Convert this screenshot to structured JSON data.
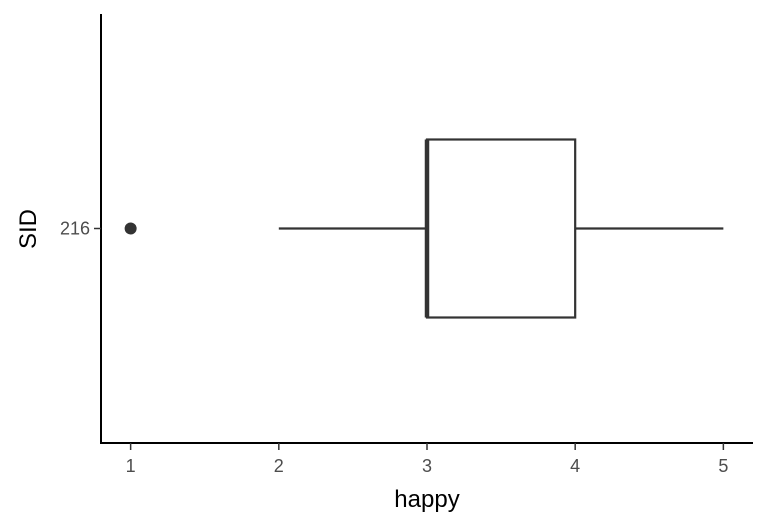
{
  "chart_data": {
    "type": "boxplot",
    "orientation": "horizontal",
    "xlabel": "happy",
    "ylabel": "SID",
    "xlim": [
      0.8,
      5.2
    ],
    "x_ticks": [
      "1",
      "2",
      "3",
      "4",
      "5"
    ],
    "categories": [
      "216"
    ],
    "boxes": [
      {
        "category": "216",
        "whisker_low": 2,
        "q1": 3,
        "median": 3,
        "q3": 4,
        "whisker_high": 5,
        "outliers": [
          1
        ]
      }
    ],
    "grid": false,
    "legend": "none",
    "colors": {
      "line": "#333333",
      "fill": "#ffffff",
      "axis": "#000000",
      "tick_text": "#4d4d4d"
    }
  }
}
